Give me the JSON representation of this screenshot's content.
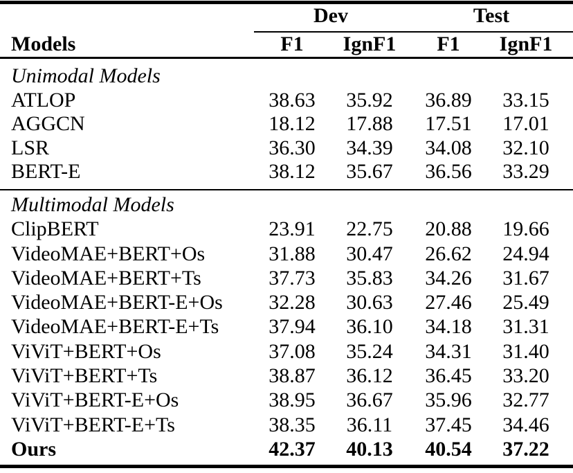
{
  "header": {
    "models_label": "Models",
    "groups": [
      {
        "label": "Dev",
        "subcols": [
          "F1",
          "IgnF1"
        ]
      },
      {
        "label": "Test",
        "subcols": [
          "F1",
          "IgnF1"
        ]
      }
    ]
  },
  "sections": [
    {
      "title": "Unimodal Models",
      "rows": [
        {
          "model": "ATLOP",
          "values": [
            "38.63",
            "35.92",
            "36.89",
            "33.15"
          ],
          "bold": false
        },
        {
          "model": "AGGCN",
          "values": [
            "18.12",
            "17.88",
            "17.51",
            "17.01"
          ],
          "bold": false
        },
        {
          "model": "LSR",
          "values": [
            "36.30",
            "34.39",
            "34.08",
            "32.10"
          ],
          "bold": false
        },
        {
          "model": "BERT-E",
          "values": [
            "38.12",
            "35.67",
            "36.56",
            "33.29"
          ],
          "bold": false
        }
      ]
    },
    {
      "title": "Multimodal Models",
      "rows": [
        {
          "model": "ClipBERT",
          "values": [
            "23.91",
            "22.75",
            "20.88",
            "19.66"
          ],
          "bold": false
        },
        {
          "model": "VideoMAE+BERT+Os",
          "values": [
            "31.88",
            "30.47",
            "26.62",
            "24.94"
          ],
          "bold": false
        },
        {
          "model": "VideoMAE+BERT+Ts",
          "values": [
            "37.73",
            "35.83",
            "34.26",
            "31.67"
          ],
          "bold": false
        },
        {
          "model": "VideoMAE+BERT-E+Os",
          "values": [
            "32.28",
            "30.63",
            "27.46",
            "25.49"
          ],
          "bold": false
        },
        {
          "model": "VideoMAE+BERT-E+Ts",
          "values": [
            "37.94",
            "36.10",
            "34.18",
            "31.31"
          ],
          "bold": false
        },
        {
          "model": "ViViT+BERT+Os",
          "values": [
            "37.08",
            "35.24",
            "34.31",
            "31.40"
          ],
          "bold": false
        },
        {
          "model": "ViViT+BERT+Ts",
          "values": [
            "38.87",
            "36.12",
            "36.45",
            "33.20"
          ],
          "bold": false
        },
        {
          "model": "ViViT+BERT-E+Os",
          "values": [
            "38.95",
            "36.67",
            "35.96",
            "32.77"
          ],
          "bold": false
        },
        {
          "model": "ViViT+BERT-E+Ts",
          "values": [
            "38.35",
            "36.11",
            "37.45",
            "34.46"
          ],
          "bold": false
        },
        {
          "model": "Ours",
          "values": [
            "42.37",
            "40.13",
            "40.54",
            "37.22"
          ],
          "bold": true
        }
      ]
    }
  ],
  "colors": {
    "text": "#000000",
    "background": "#ffffff",
    "rule": "#000000"
  }
}
